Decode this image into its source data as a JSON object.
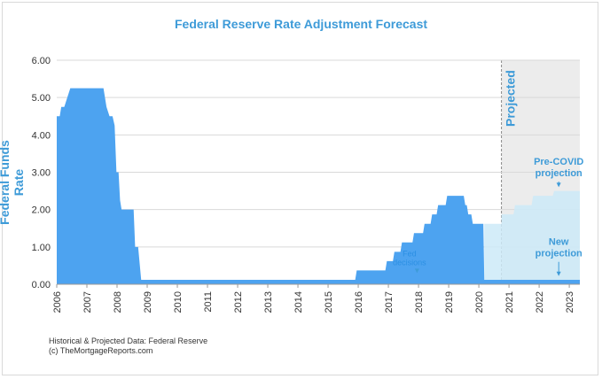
{
  "chart_data": {
    "type": "area",
    "title": "Federal Reserve Rate Adjustment Forecast",
    "xlabel": "",
    "ylabel": "Federal Funds Rate",
    "xlim": [
      2006,
      2023.35
    ],
    "ylim": [
      0,
      6
    ],
    "y_ticks": [
      "0.00",
      "1.00",
      "2.00",
      "3.00",
      "4.00",
      "5.00",
      "6.00"
    ],
    "x_ticks": [
      2006,
      2007,
      2008,
      2009,
      2010,
      2011,
      2012,
      2013,
      2014,
      2015,
      2016,
      2017,
      2018,
      2019,
      2020,
      2021,
      2022,
      2023
    ],
    "grid": true,
    "projected_region": {
      "label": "Projected",
      "from": 2020.75,
      "to": 2023.35
    },
    "series": [
      {
        "name": "",
        "color": "#4da3f0",
        "points": [
          [
            2006.0,
            4.5
          ],
          [
            2006.1,
            4.5
          ],
          [
            2006.15,
            4.75
          ],
          [
            2006.25,
            4.75
          ],
          [
            2006.35,
            5.0
          ],
          [
            2006.45,
            5.25
          ],
          [
            2007.55,
            5.25
          ],
          [
            2007.65,
            4.75
          ],
          [
            2007.75,
            4.5
          ],
          [
            2007.85,
            4.5
          ],
          [
            2007.92,
            4.25
          ],
          [
            2007.98,
            3.0
          ],
          [
            2008.05,
            3.0
          ],
          [
            2008.1,
            2.25
          ],
          [
            2008.15,
            2.0
          ],
          [
            2008.55,
            2.0
          ],
          [
            2008.6,
            1.0
          ],
          [
            2008.7,
            1.0
          ],
          [
            2008.8,
            0.12
          ],
          [
            2015.9,
            0.12
          ],
          [
            2015.95,
            0.37
          ],
          [
            2016.9,
            0.37
          ],
          [
            2016.95,
            0.62
          ],
          [
            2017.15,
            0.62
          ],
          [
            2017.2,
            0.87
          ],
          [
            2017.4,
            0.87
          ],
          [
            2017.45,
            1.12
          ],
          [
            2017.8,
            1.12
          ],
          [
            2017.85,
            1.37
          ],
          [
            2018.15,
            1.37
          ],
          [
            2018.2,
            1.62
          ],
          [
            2018.4,
            1.62
          ],
          [
            2018.45,
            1.87
          ],
          [
            2018.6,
            1.87
          ],
          [
            2018.65,
            2.12
          ],
          [
            2018.9,
            2.12
          ],
          [
            2018.95,
            2.37
          ],
          [
            2019.5,
            2.37
          ],
          [
            2019.55,
            2.12
          ],
          [
            2019.6,
            2.12
          ],
          [
            2019.65,
            1.87
          ],
          [
            2019.75,
            1.87
          ],
          [
            2019.8,
            1.62
          ],
          [
            2020.15,
            1.62
          ],
          [
            2020.18,
            0.12
          ],
          [
            2023.35,
            0.12
          ]
        ]
      },
      {
        "name": "Pre-COVID projection",
        "color": "#cdeaf8",
        "points": [
          [
            2020.18,
            1.62
          ],
          [
            2020.75,
            1.62
          ],
          [
            2020.75,
            1.87
          ],
          [
            2021.15,
            1.87
          ],
          [
            2021.2,
            2.12
          ],
          [
            2021.75,
            2.12
          ],
          [
            2021.8,
            2.37
          ],
          [
            2022.45,
            2.37
          ],
          [
            2022.5,
            2.5
          ],
          [
            2023.35,
            2.5
          ]
        ]
      }
    ],
    "annotations": [
      {
        "text": "Pre-COVID\nprojection",
        "x": 2022.65,
        "y": 3.2,
        "arrow_to": [
          2022.65,
          2.6
        ]
      },
      {
        "text": "New\nprojection",
        "x": 2022.65,
        "y": 1.05,
        "arrow_to": [
          2022.65,
          0.22
        ]
      },
      {
        "text": "Fed\ndecisions",
        "x": 2017.7,
        "y": 0.75,
        "arrow_to": [
          2017.95,
          0.3
        ]
      }
    ]
  },
  "source_lines": [
    "Historical & Projected Data: Federal Reserve",
    "(c) TheMortgageReports.com"
  ]
}
